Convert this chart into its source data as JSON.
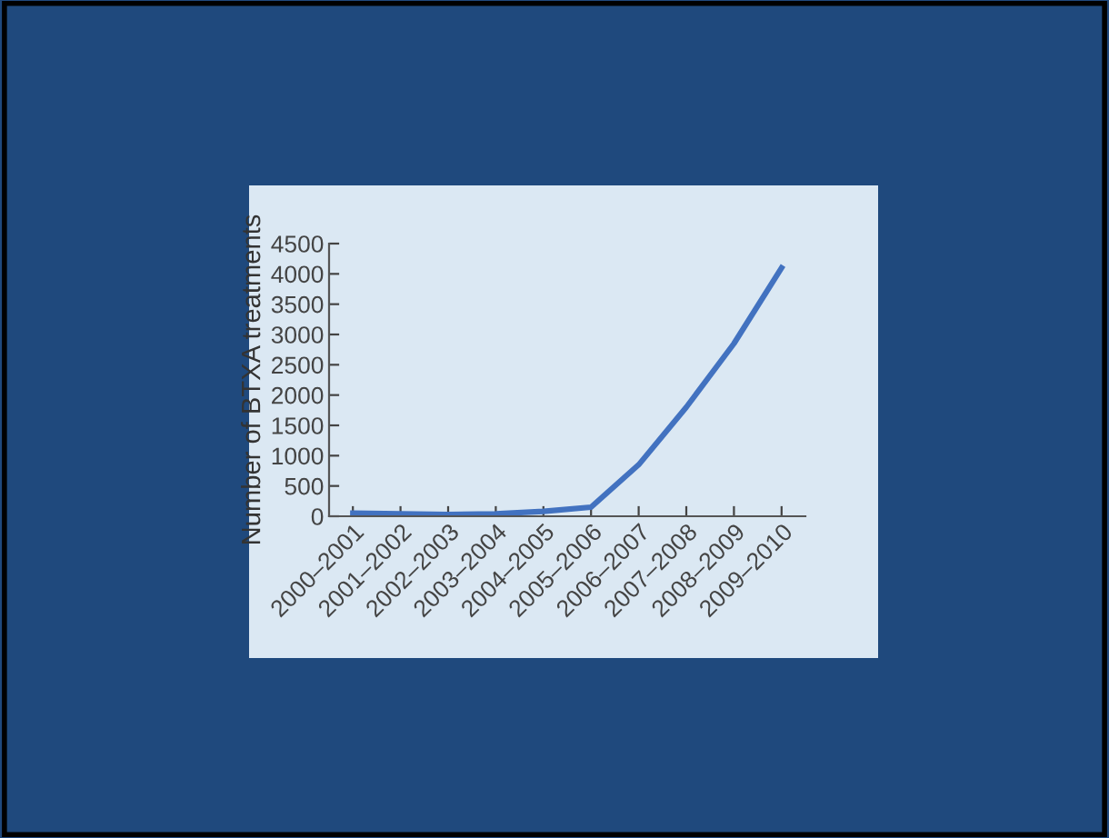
{
  "chart_data": {
    "type": "line",
    "ylabel": "Number of BTXA treatments",
    "categories": [
      "2000–2001",
      "2001–2002",
      "2002–2003",
      "2003–2004",
      "2004–2005",
      "2005–2006",
      "2006–2007",
      "2007–2008",
      "2008–2009",
      "2009–2010"
    ],
    "series": [
      {
        "color": "#4272c0",
        "values": [
          50,
          40,
          30,
          40,
          80,
          150,
          850,
          1800,
          2850,
          4100
        ]
      }
    ],
    "ylim": [
      0,
      4500
    ],
    "yticks": [
      0,
      500,
      1000,
      1500,
      2000,
      2500,
      3000,
      3500,
      4000,
      4500
    ],
    "grid": false,
    "marker": "none",
    "line_style": "solid"
  }
}
